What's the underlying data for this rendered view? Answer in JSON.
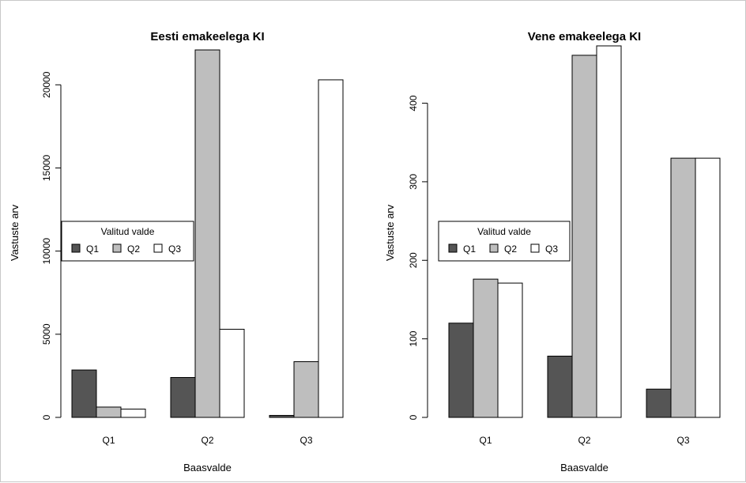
{
  "chart_data": [
    {
      "type": "bar",
      "title": "Eesti emakeelega KI",
      "xlabel": "Baasvalde",
      "ylabel": "Vastuste arv",
      "categories": [
        "Q1",
        "Q2",
        "Q3"
      ],
      "ylim": [
        0,
        22200
      ],
      "yticks": [
        0,
        5000,
        10000,
        15000,
        20000
      ],
      "grid": false,
      "legend": {
        "title": "Valitud valde",
        "placement": "middle-left"
      },
      "series": [
        {
          "name": "Q1",
          "color": "#555555",
          "values": [
            2850,
            2400,
            120
          ]
        },
        {
          "name": "Q2",
          "color": "#bebebe",
          "values": [
            620,
            22100,
            3350
          ]
        },
        {
          "name": "Q3",
          "color": "#ffffff",
          "values": [
            500,
            5300,
            20300
          ]
        }
      ]
    },
    {
      "type": "bar",
      "title": "Vene emakeelega KI",
      "xlabel": "Baasvalde",
      "ylabel": "Vastuste arv",
      "categories": [
        "Q1",
        "Q2",
        "Q3"
      ],
      "ylim": [
        0,
        470
      ],
      "yticks": [
        0,
        100,
        200,
        300,
        400
      ],
      "grid": false,
      "legend": {
        "title": "Valitud valde",
        "placement": "middle-left"
      },
      "series": [
        {
          "name": "Q1",
          "color": "#555555",
          "values": [
            120,
            78,
            36
          ]
        },
        {
          "name": "Q2",
          "color": "#bebebe",
          "values": [
            176,
            461,
            330
          ]
        },
        {
          "name": "Q3",
          "color": "#ffffff",
          "values": [
            171,
            473,
            330
          ]
        }
      ]
    }
  ]
}
